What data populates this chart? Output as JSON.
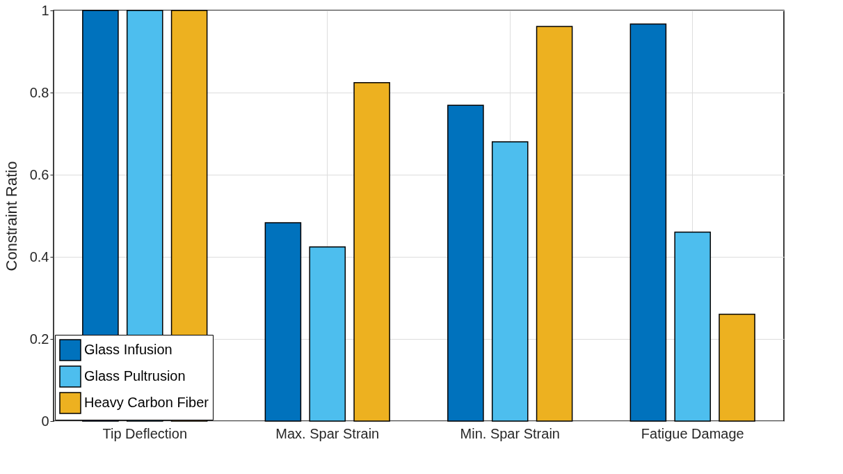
{
  "chart_data": {
    "type": "bar",
    "ylabel": "Constraint Ratio",
    "categories": [
      "Tip Deflection",
      "Max. Spar Strain",
      "Min. Spar Strain",
      "Fatigue Damage"
    ],
    "series": [
      {
        "name": "Glass Infusion",
        "color": "#0072bd",
        "values": [
          1.0,
          0.483,
          0.769,
          0.967
        ]
      },
      {
        "name": "Glass Pultrusion",
        "color": "#4dbeee",
        "values": [
          1.0,
          0.424,
          0.68,
          0.46
        ]
      },
      {
        "name": "Heavy Carbon Fiber",
        "color": "#edb120",
        "values": [
          1.0,
          0.824,
          0.961,
          0.26
        ]
      }
    ],
    "ylim": [
      0,
      1
    ],
    "yticks": [
      0,
      0.2,
      0.4,
      0.6,
      0.8,
      1
    ],
    "grid": true,
    "legend": "bottom left"
  }
}
